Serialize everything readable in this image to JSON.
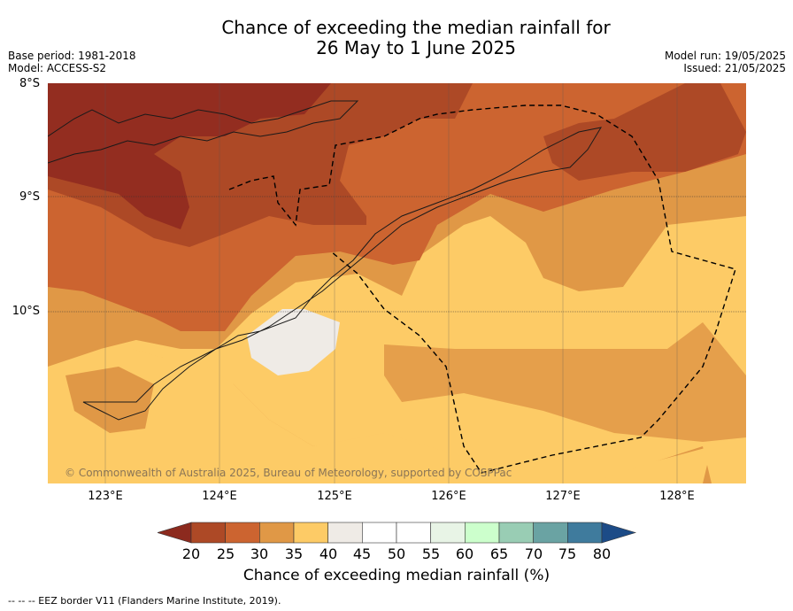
{
  "title_line1": "Chance of exceeding the median rainfall for",
  "title_line2": "26 May to 1 June 2025",
  "meta_left": [
    "Base period: 1981-2018",
    "Model: ACCESS-S2"
  ],
  "meta_right": [
    "Model run: 19/05/2025",
    "Issued: 21/05/2025"
  ],
  "lat_labels": [
    "8°S",
    "9°S",
    "10°S"
  ],
  "lon_labels": [
    "123°E",
    "124°E",
    "125°E",
    "126°E",
    "127°E",
    "128°E"
  ],
  "copyright": "© Commonwealth of Australia 2025, Bureau of Meteorology, supported by COSPPac",
  "colorbar": {
    "ticks": [
      "20",
      "25",
      "30",
      "35",
      "40",
      "45",
      "50",
      "55",
      "60",
      "65",
      "70",
      "75",
      "80"
    ],
    "colors": [
      "#ad4926",
      "#cc6430",
      "#e09846",
      "#fdcb66",
      "#efebe6",
      "#ffffff",
      "#ffffff",
      "#e8f4e6",
      "#ccffcc",
      "#99cdb4",
      "#6aa3a3",
      "#3f7b9d"
    ],
    "under_color": "#8c2a1e",
    "over_color": "#1c4b87",
    "label": "Chance of exceeding median rainfall (%)"
  },
  "map_colors": {
    "bin_20": "#932d20",
    "bin_25": "#ad4926",
    "bin_30": "#cc6430",
    "bin_35": "#e09846",
    "bin_40": "#fdcb66",
    "bin_45": "#efebe6"
  },
  "footer": "--  --  -- EEZ border V11 (Flanders Marine Institute, 2019)."
}
